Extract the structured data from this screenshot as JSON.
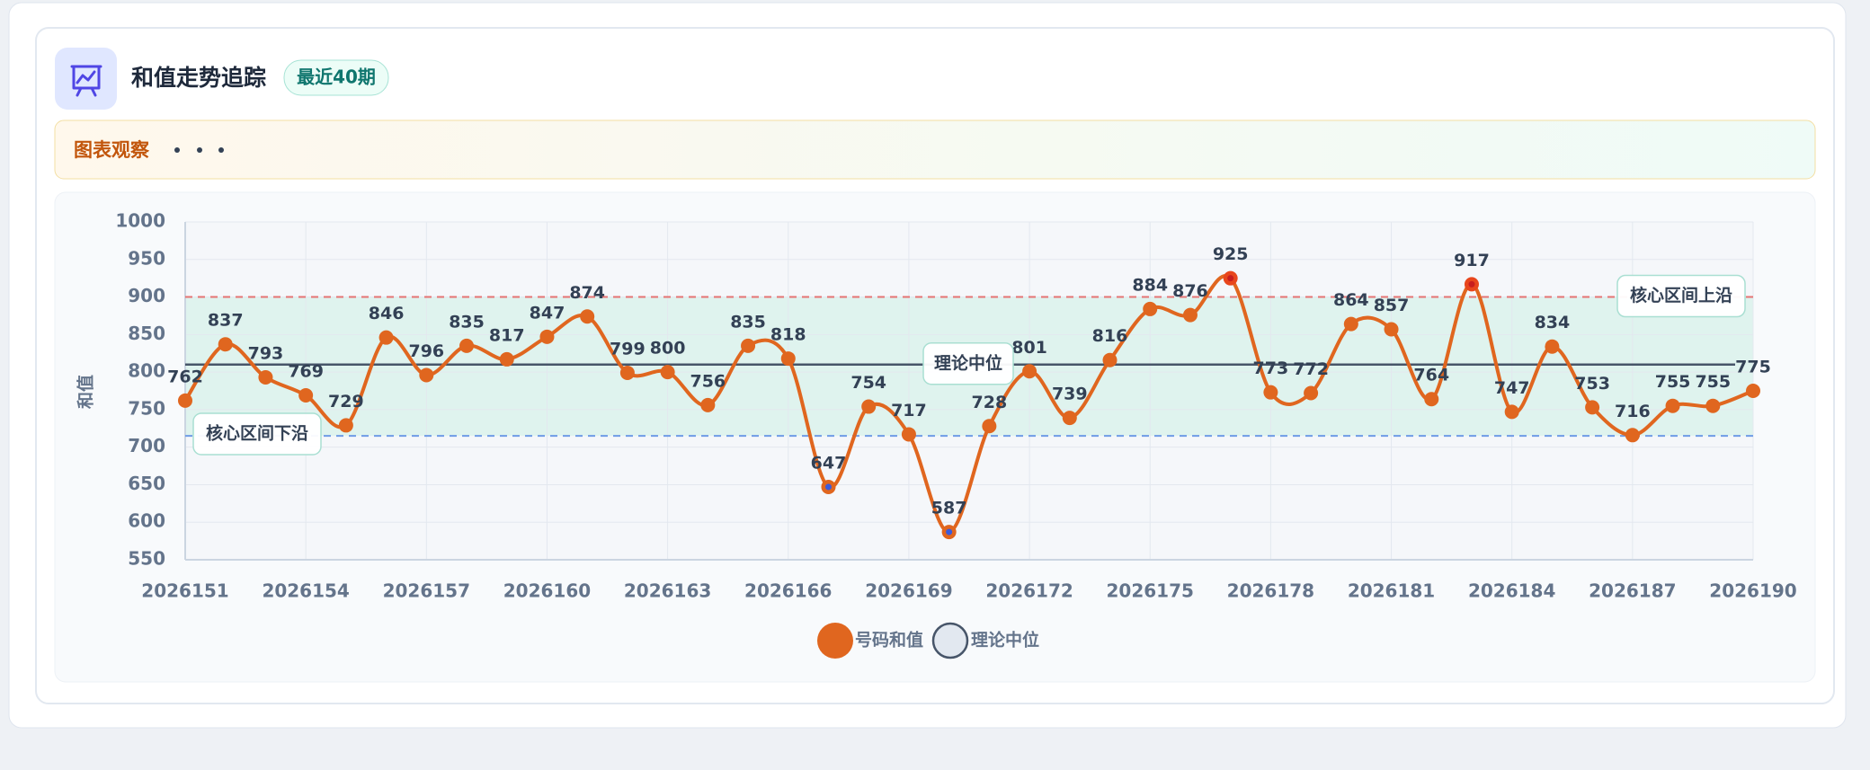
{
  "header": {
    "title": "和值走势追踪",
    "badge": "最近40期"
  },
  "observation": {
    "title": "图表观察"
  },
  "chart_data": {
    "type": "line",
    "y_label": "和值",
    "x": [
      2026151,
      2026152,
      2026153,
      2026154,
      2026155,
      2026156,
      2026157,
      2026158,
      2026159,
      2026160,
      2026161,
      2026162,
      2026163,
      2026164,
      2026165,
      2026166,
      2026167,
      2026168,
      2026169,
      2026170,
      2026171,
      2026172,
      2026173,
      2026174,
      2026175,
      2026176,
      2026177,
      2026178,
      2026179,
      2026180,
      2026181,
      2026182,
      2026183,
      2026184,
      2026185,
      2026186,
      2026187,
      2026188,
      2026189,
      2026190
    ],
    "xlim": [
      2026151,
      2026190
    ],
    "xticks": [
      2026151,
      2026154,
      2026157,
      2026160,
      2026163,
      2026166,
      2026169,
      2026172,
      2026175,
      2026178,
      2026181,
      2026184,
      2026187,
      2026190
    ],
    "ylim": [
      550,
      1000
    ],
    "yticks": [
      550,
      600,
      650,
      700,
      750,
      800,
      850,
      900,
      950,
      1000
    ],
    "grid": true,
    "legend": "bottom",
    "series": [
      {
        "name": "号码和值",
        "color": "#e0661f",
        "values": [
          762,
          837,
          793,
          769,
          729,
          846,
          796,
          835,
          817,
          847,
          874,
          799,
          800,
          756,
          835,
          818,
          647,
          754,
          717,
          587,
          728,
          801,
          739,
          816,
          884,
          876,
          925,
          773,
          772,
          864,
          857,
          764,
          917,
          747,
          834,
          753,
          716,
          755,
          755,
          775
        ]
      }
    ],
    "median": {
      "name": "理论中位",
      "value": 810,
      "color": "#475569"
    },
    "core_band": {
      "fill": "#d5f1e8",
      "lower": {
        "label": "核心区间下沿",
        "value": 715,
        "color": "#6f9be6"
      },
      "upper": {
        "label": "核心区间上沿",
        "value": 900,
        "color": "#e57373"
      }
    }
  }
}
